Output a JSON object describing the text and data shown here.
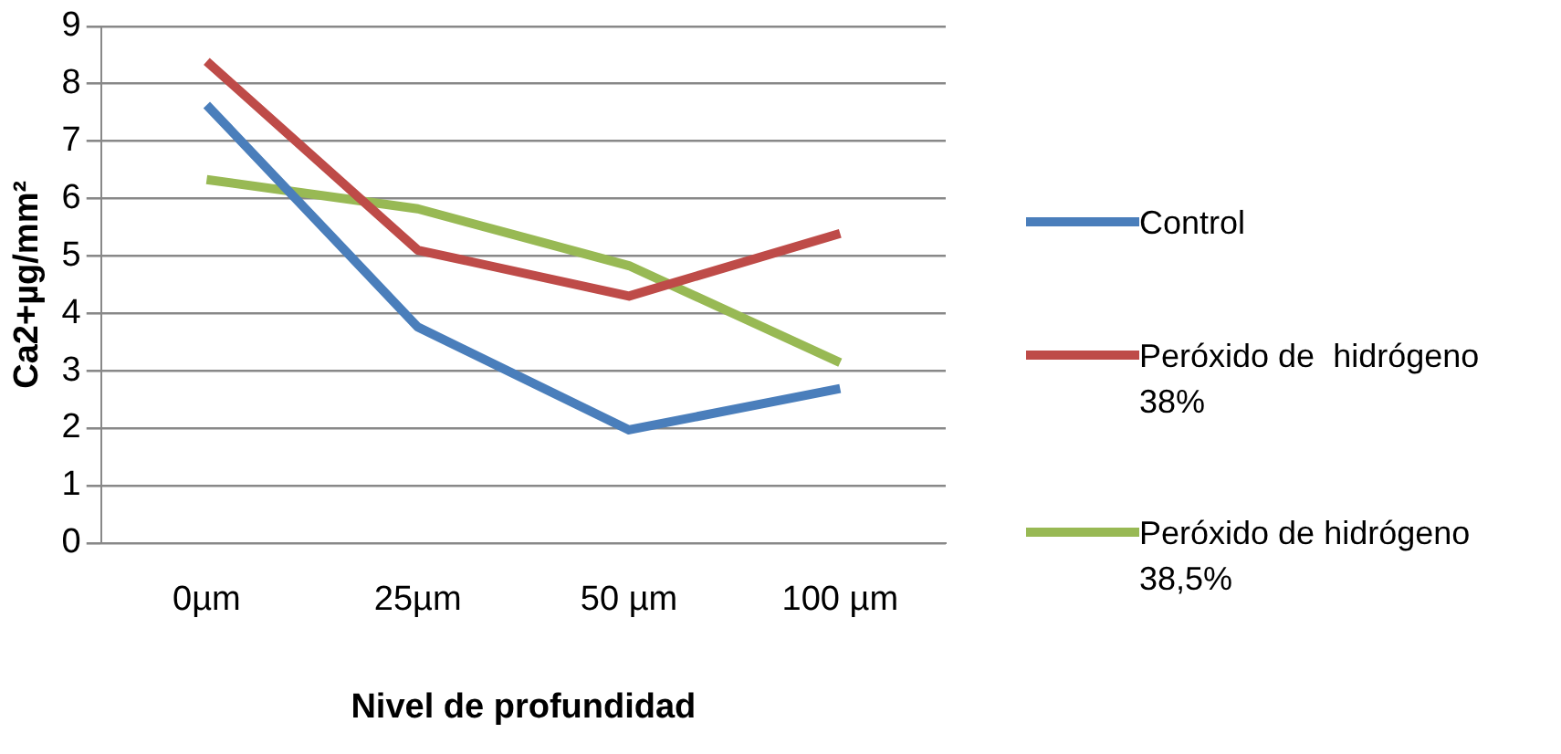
{
  "chart_data": {
    "type": "line",
    "xlabel": "Nivel de profundidad",
    "ylabel": "Ca2+µg/mm²",
    "categories": [
      "0µm",
      "25µm",
      "50 µm",
      "100 µm"
    ],
    "series": [
      {
        "name": "Control",
        "color": "#4a7ebb",
        "values": [
          7.63,
          3.76,
          1.97,
          2.69
        ]
      },
      {
        "name": "Peróxido de  hidrógeno 38%",
        "color": "#be4b48",
        "values": [
          8.39,
          5.1,
          4.3,
          5.39
        ]
      },
      {
        "name": "Peróxido de hidrógeno 38,5%",
        "color": "#98b954",
        "values": [
          6.33,
          5.82,
          4.83,
          3.14
        ]
      }
    ],
    "ylim": [
      0,
      9
    ],
    "yticks": [
      0,
      1,
      2,
      3,
      4,
      5,
      6,
      7,
      8,
      9
    ],
    "grid": "y",
    "legend": "right",
    "marker": "none",
    "line_style": "solid"
  }
}
